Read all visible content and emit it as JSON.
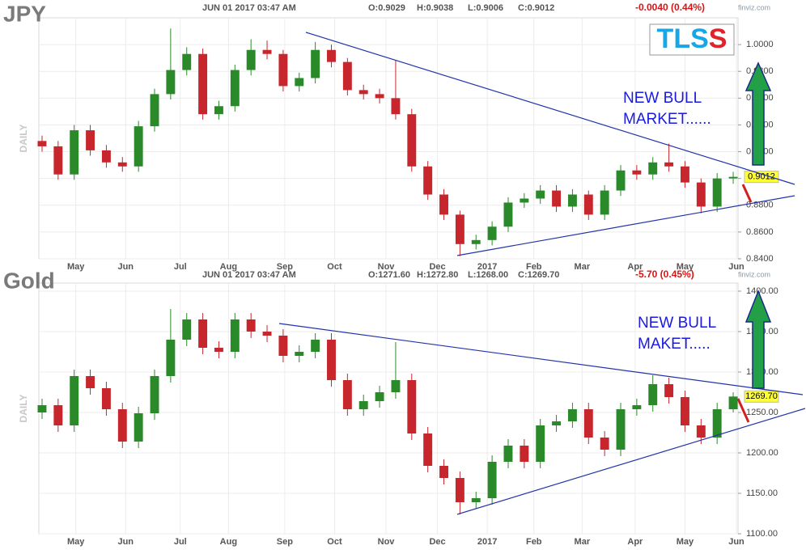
{
  "chart_data": [
    {
      "type": "candlestick",
      "title": "JPY",
      "timestamp": "JUN 01 2017 03:47 AM",
      "ohlc_text": [
        "O:0.9029",
        "H:0.9038",
        "L:0.9006",
        "C:0.9012"
      ],
      "change": "-0.0040 (0.44%)",
      "source": "finviz.com",
      "logo": "TLSS",
      "y_axis_label": "DAILY",
      "annotation": [
        "NEW BULL",
        "MARKET......"
      ],
      "last_label": "0.9012",
      "up_color": "#2a8a2a",
      "down_color": "#c8262d",
      "grid": true,
      "open": [
        0.928,
        0.924,
        0.903,
        0.936,
        0.921,
        0.912,
        0.909,
        0.939,
        0.963,
        0.981,
        0.993,
        0.948,
        0.954,
        0.981,
        0.996,
        0.993,
        0.969,
        0.975,
        0.996,
        0.987,
        0.966,
        0.963,
        0.96,
        0.948,
        0.909,
        0.888,
        0.873,
        0.851,
        0.854,
        0.864,
        0.882,
        0.885,
        0.891,
        0.879,
        0.888,
        0.873,
        0.891,
        0.906,
        0.903,
        0.912,
        0.909,
        0.897,
        0.879,
        0.9
      ],
      "high": [
        0.932,
        0.928,
        0.94,
        0.94,
        0.925,
        0.916,
        0.943,
        0.967,
        1.012,
        0.998,
        0.997,
        0.958,
        0.985,
        1.004,
        1.003,
        0.996,
        0.979,
        1.002,
        1.0,
        0.99,
        0.97,
        0.967,
        0.988,
        0.952,
        0.913,
        0.892,
        0.876,
        0.858,
        0.868,
        0.886,
        0.889,
        0.895,
        0.895,
        0.892,
        0.891,
        0.895,
        0.91,
        0.91,
        0.916,
        0.926,
        0.913,
        0.9,
        0.904,
        0.905
      ],
      "low": [
        0.92,
        0.899,
        0.899,
        0.917,
        0.908,
        0.905,
        0.905,
        0.935,
        0.959,
        0.977,
        0.944,
        0.944,
        0.95,
        0.977,
        0.989,
        0.965,
        0.965,
        0.971,
        0.983,
        0.962,
        0.959,
        0.956,
        0.944,
        0.905,
        0.884,
        0.869,
        0.842,
        0.847,
        0.85,
        0.86,
        0.878,
        0.881,
        0.875,
        0.875,
        0.869,
        0.869,
        0.887,
        0.899,
        0.899,
        0.905,
        0.893,
        0.874,
        0.875,
        0.896
      ],
      "close": [
        0.924,
        0.903,
        0.936,
        0.921,
        0.912,
        0.909,
        0.939,
        0.963,
        0.981,
        0.993,
        0.948,
        0.954,
        0.981,
        0.996,
        0.993,
        0.969,
        0.975,
        0.996,
        0.987,
        0.966,
        0.963,
        0.96,
        0.948,
        0.909,
        0.888,
        0.873,
        0.851,
        0.854,
        0.864,
        0.882,
        0.885,
        0.891,
        0.879,
        0.888,
        0.873,
        0.891,
        0.906,
        0.903,
        0.912,
        0.909,
        0.897,
        0.879,
        0.9,
        0.9012
      ],
      "xlim": [
        -0.2,
        43.3
      ],
      "ylim": [
        0.84,
        1.02
      ],
      "yticks": [
        {
          "value": 0.84,
          "label": "0.8400"
        },
        {
          "value": 0.86,
          "label": "0.8600"
        },
        {
          "value": 0.88,
          "label": "0.8800"
        },
        {
          "value": 0.9,
          "label": "0.9000"
        },
        {
          "value": 0.92,
          "label": "0.9200"
        },
        {
          "value": 0.94,
          "label": "0.9400"
        },
        {
          "value": 0.96,
          "label": "0.9600"
        },
        {
          "value": 0.98,
          "label": "0.9800"
        },
        {
          "value": 1.0,
          "label": "1.0000"
        }
      ],
      "xticks": [
        {
          "value": 2.1,
          "label": "May"
        },
        {
          "value": 5.2,
          "label": "Jun"
        },
        {
          "value": 8.6,
          "label": "Jul"
        },
        {
          "value": 11.6,
          "label": "Aug"
        },
        {
          "value": 15.1,
          "label": "Sep"
        },
        {
          "value": 18.2,
          "label": "Oct"
        },
        {
          "value": 21.4,
          "label": "Nov"
        },
        {
          "value": 24.6,
          "label": "Dec"
        },
        {
          "value": 27.7,
          "label": "2017"
        },
        {
          "value": 30.6,
          "label": "Feb"
        },
        {
          "value": 33.6,
          "label": "Mar"
        },
        {
          "value": 36.9,
          "label": "Apr"
        },
        {
          "value": 40,
          "label": "May"
        },
        {
          "value": 43.2,
          "label": "Jun"
        }
      ]
    },
    {
      "type": "candlestick",
      "title": "Gold",
      "timestamp": "JUN 01 2017 03:47 AM",
      "ohlc_text": [
        "O:1271.60",
        "H:1272.80",
        "L:1268.00",
        "C:1269.70"
      ],
      "change": "-5.70 (0.45%)",
      "source": "finviz.com",
      "y_axis_label": "DAILY",
      "annotation": [
        "NEW BULL",
        "MAKET....."
      ],
      "last_label": "1269.70",
      "up_color": "#2a8a2a",
      "down_color": "#c8262d",
      "grid": true,
      "open": [
        1250,
        1259,
        1234,
        1295,
        1280,
        1254,
        1214,
        1249,
        1295,
        1340,
        1365,
        1330,
        1325,
        1365,
        1350,
        1345,
        1320,
        1325,
        1340,
        1290,
        1254,
        1264,
        1275,
        1290,
        1224,
        1184,
        1169,
        1139,
        1144,
        1189,
        1209,
        1189,
        1234,
        1239,
        1254,
        1219,
        1204,
        1254,
        1259,
        1285,
        1269,
        1234,
        1219,
        1254
      ],
      "high": [
        1267,
        1267,
        1303,
        1303,
        1288,
        1262,
        1257,
        1303,
        1378,
        1373,
        1373,
        1338,
        1373,
        1373,
        1358,
        1353,
        1333,
        1348,
        1348,
        1298,
        1272,
        1283,
        1337,
        1298,
        1232,
        1192,
        1177,
        1152,
        1197,
        1217,
        1217,
        1242,
        1247,
        1262,
        1262,
        1227,
        1262,
        1267,
        1296,
        1293,
        1277,
        1242,
        1262,
        1275
      ],
      "low": [
        1242,
        1226,
        1226,
        1272,
        1246,
        1206,
        1206,
        1241,
        1287,
        1332,
        1322,
        1317,
        1317,
        1342,
        1337,
        1312,
        1312,
        1317,
        1282,
        1246,
        1246,
        1256,
        1267,
        1216,
        1176,
        1161,
        1124,
        1131,
        1136,
        1181,
        1181,
        1181,
        1226,
        1231,
        1211,
        1196,
        1196,
        1246,
        1251,
        1261,
        1226,
        1211,
        1211,
        1250
      ],
      "close": [
        1259,
        1234,
        1295,
        1280,
        1254,
        1214,
        1249,
        1295,
        1340,
        1365,
        1330,
        1325,
        1365,
        1350,
        1345,
        1320,
        1325,
        1340,
        1290,
        1254,
        1264,
        1275,
        1290,
        1224,
        1184,
        1169,
        1139,
        1144,
        1189,
        1209,
        1189,
        1234,
        1239,
        1254,
        1219,
        1204,
        1254,
        1259,
        1285,
        1269,
        1234,
        1219,
        1254,
        1269.7
      ],
      "xlim": [
        -0.2,
        43.3
      ],
      "ylim": [
        1100,
        1410
      ],
      "yticks": [
        {
          "value": 1100,
          "label": "1100.00"
        },
        {
          "value": 1150,
          "label": "1150.00"
        },
        {
          "value": 1200,
          "label": "1200.00"
        },
        {
          "value": 1250,
          "label": "1250.00"
        },
        {
          "value": 1300,
          "label": "1300.00"
        },
        {
          "value": 1350,
          "label": "1350.00"
        },
        {
          "value": 1400,
          "label": "1400.00"
        }
      ],
      "xticks": [
        {
          "value": 2.1,
          "label": "May"
        },
        {
          "value": 5.2,
          "label": "Jun"
        },
        {
          "value": 8.6,
          "label": "Jul"
        },
        {
          "value": 11.6,
          "label": "Aug"
        },
        {
          "value": 15.1,
          "label": "Sep"
        },
        {
          "value": 18.2,
          "label": "Oct"
        },
        {
          "value": 21.4,
          "label": "Nov"
        },
        {
          "value": 24.6,
          "label": "Dec"
        },
        {
          "value": 27.7,
          "label": "2017"
        },
        {
          "value": 30.6,
          "label": "Feb"
        },
        {
          "value": 33.6,
          "label": "Mar"
        },
        {
          "value": 36.9,
          "label": "Apr"
        },
        {
          "value": 40,
          "label": "May"
        },
        {
          "value": 43.2,
          "label": "Jun"
        }
      ]
    }
  ]
}
